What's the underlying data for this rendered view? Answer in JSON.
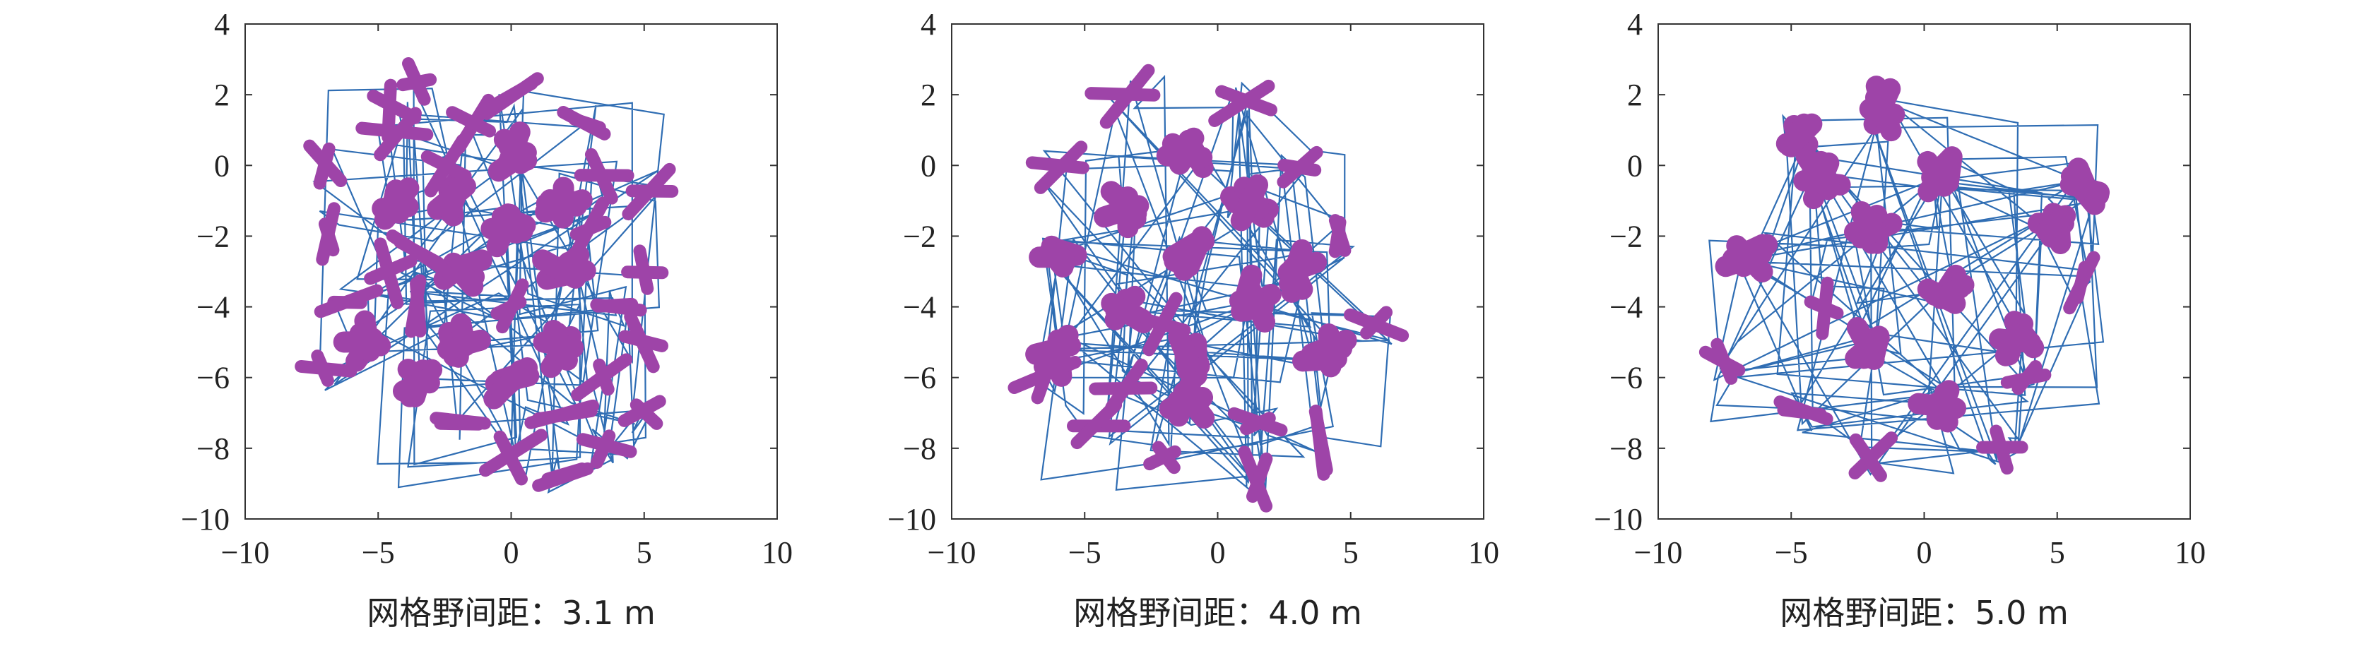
{
  "chart_data": [
    {
      "type": "scatter",
      "title": "网格野间距：3.1 m",
      "xlabel": "网格野间距：3.1 m",
      "ylabel": "",
      "xlim": [
        -10,
        10
      ],
      "ylim": [
        -10,
        4
      ],
      "xticks": [
        "−10",
        "−5",
        "0",
        "5",
        "10"
      ],
      "yticks": [
        "4",
        "2",
        "0",
        "−2",
        "−4",
        "−6",
        "−8",
        "−10"
      ],
      "grid": false,
      "series": [
        {
          "name": "trajectory",
          "kind": "line",
          "color": "#2f6db3"
        },
        {
          "name": "firing fields",
          "kind": "points",
          "color": "#9e44a8",
          "points": [
            [
              0,
              0.3
            ],
            [
              -4.5,
              -1
            ],
            [
              -2,
              -1
            ],
            [
              2,
              -1
            ],
            [
              0,
              -1.7
            ],
            [
              -2,
              -3
            ],
            [
              2,
              -3
            ],
            [
              -5.5,
              -5
            ],
            [
              -2,
              -5
            ],
            [
              2,
              -5.2
            ],
            [
              -3.5,
              -6
            ],
            [
              0,
              -6
            ],
            [
              -2,
              -7.3
            ],
            [
              2,
              -7
            ],
            [
              5,
              -5
            ],
            [
              3.5,
              -6
            ],
            [
              -6.8,
              -2
            ],
            [
              -3.5,
              -2.5
            ],
            [
              5,
              -3
            ],
            [
              -4.3,
              0.9
            ],
            [
              -3.5,
              2.3
            ],
            [
              -4.5,
              1.6
            ],
            [
              -1.5,
              1.2
            ],
            [
              -2.5,
              0
            ],
            [
              5.2,
              -0.7
            ],
            [
              3.5,
              -0.3
            ],
            [
              2.8,
              1.2
            ],
            [
              0,
              2
            ],
            [
              -7,
              -5.8
            ],
            [
              -6.2,
              -3.8
            ],
            [
              -3.5,
              -4
            ],
            [
              0,
              -4
            ],
            [
              4,
              -4
            ],
            [
              -4.5,
              -3
            ],
            [
              3.5,
              -8
            ],
            [
              2,
              -8.8
            ],
            [
              0,
              -8.2
            ],
            [
              -7,
              0
            ],
            [
              5,
              -7
            ],
            [
              3,
              -1.8
            ]
          ]
        }
      ]
    },
    {
      "type": "scatter",
      "title": "网格野间距：4.0 m",
      "xlabel": "网格野间距：4.0 m",
      "ylabel": "",
      "xlim": [
        -10,
        10
      ],
      "ylim": [
        -10,
        4
      ],
      "xticks": [
        "−10",
        "−5",
        "0",
        "5",
        "10"
      ],
      "yticks": [
        "4",
        "2",
        "0",
        "−2",
        "−4",
        "−6",
        "−8",
        "−10"
      ],
      "grid": false,
      "series": [
        {
          "name": "trajectory",
          "kind": "line",
          "color": "#2f6db3"
        },
        {
          "name": "firing fields",
          "kind": "points",
          "color": "#9e44a8",
          "points": [
            [
              -1,
              0.3
            ],
            [
              -3.5,
              -1.2
            ],
            [
              1,
              -1
            ],
            [
              -6,
              -2.5
            ],
            [
              -1,
              -2.5
            ],
            [
              3,
              -3
            ],
            [
              -6,
              -5.3
            ],
            [
              -3.5,
              -4
            ],
            [
              -1,
              -5.3
            ],
            [
              1.3,
              -3.8
            ],
            [
              4,
              -5.3
            ],
            [
              -1,
              -6.8
            ],
            [
              1.5,
              -7.3
            ],
            [
              -3.5,
              -6.3
            ],
            [
              -6,
              0
            ],
            [
              -3.5,
              2
            ],
            [
              1,
              1.8
            ],
            [
              3,
              0
            ],
            [
              -2,
              -4.5
            ],
            [
              4.5,
              -2
            ],
            [
              6,
              -4.5
            ],
            [
              3.8,
              -7.8
            ],
            [
              1.5,
              -8.8
            ],
            [
              -2,
              -8.3
            ],
            [
              -4.5,
              -7.3
            ],
            [
              -6.5,
              -6
            ]
          ]
        }
      ]
    },
    {
      "type": "scatter",
      "title": "网格野间距：5.0 m",
      "xlabel": "网格野间距：5.0 m",
      "ylabel": "",
      "xlim": [
        -10,
        10
      ],
      "ylim": [
        -10,
        4
      ],
      "xticks": [
        "−10",
        "−5",
        "0",
        "5",
        "10"
      ],
      "yticks": [
        "4",
        "2",
        "0",
        "−2",
        "−4",
        "−6",
        "−8",
        "−10"
      ],
      "grid": false,
      "series": [
        {
          "name": "trajectory",
          "kind": "line",
          "color": "#2f6db3"
        },
        {
          "name": "firing fields",
          "kind": "points",
          "color": "#9e44a8",
          "points": [
            [
              0.7,
              -0.2
            ],
            [
              -4,
              -0.3
            ],
            [
              -2,
              -1.8
            ],
            [
              -6.5,
              -2.5
            ],
            [
              0.7,
              -3.5
            ],
            [
              -2,
              -5
            ],
            [
              3.5,
              -5
            ],
            [
              4.8,
              -1.8
            ],
            [
              0.7,
              -6.8
            ],
            [
              -4.8,
              0.8
            ],
            [
              -1.5,
              1.5
            ],
            [
              6,
              -0.5
            ],
            [
              -7.5,
              -5.5
            ],
            [
              -4.5,
              -7
            ],
            [
              -2,
              -8.2
            ],
            [
              3,
              -8
            ],
            [
              6,
              -3.3
            ],
            [
              -3.8,
              -4
            ],
            [
              3.8,
              -6
            ]
          ]
        }
      ]
    }
  ]
}
